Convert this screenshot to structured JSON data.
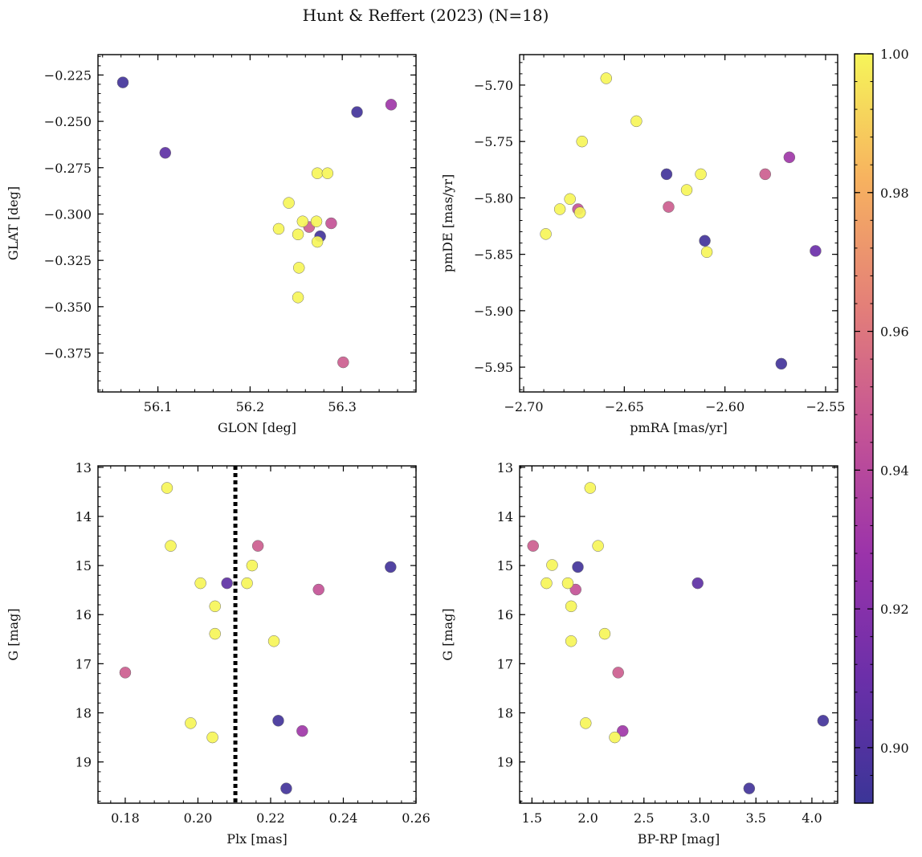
{
  "chart_data": {
    "title": "Hunt & Reffert (2023) (N=18)",
    "type": "scatter",
    "colormap": "plasma",
    "colorbar": {
      "range": [
        0.892,
        1.0
      ],
      "ticks": [
        0.9,
        0.92,
        0.94,
        0.96,
        0.98,
        1.0
      ],
      "tick_labels": [
        "0.90",
        "0.92",
        "0.94",
        "0.96",
        "0.98",
        "1.00"
      ],
      "colors": [
        "#3b3597",
        "#6b2fa9",
        "#9b33aa",
        "#c55495",
        "#e48078",
        "#f7b25f",
        "#f6f559"
      ]
    },
    "panels": [
      {
        "id": "glon-glat",
        "xlabel": "GLON [deg]",
        "ylabel": "GLAT [deg]",
        "xlim": [
          56.035,
          56.38
        ],
        "ylim": [
          -0.396,
          -0.214
        ],
        "yinvert": false,
        "xticks": [
          56.1,
          56.2,
          56.3
        ],
        "xtick_labels": [
          "56.1",
          "56.2",
          "56.3"
        ],
        "yticks": [
          -0.225,
          -0.25,
          -0.275,
          -0.3,
          -0.325,
          -0.35,
          -0.375
        ],
        "ytick_labels": [
          "−0.225",
          "−0.250",
          "−0.275",
          "−0.300",
          "−0.325",
          "−0.350",
          "−0.375"
        ],
        "points": [
          [
            56.062,
            -0.229,
            0.895
          ],
          [
            56.108,
            -0.267,
            0.905
          ],
          [
            56.316,
            -0.245,
            0.895
          ],
          [
            56.353,
            -0.241,
            0.93
          ],
          [
            56.273,
            -0.278,
            1.0
          ],
          [
            56.284,
            -0.278,
            1.0
          ],
          [
            56.242,
            -0.294,
            1.0
          ],
          [
            56.257,
            -0.304,
            1.0
          ],
          [
            56.272,
            -0.304,
            1.0
          ],
          [
            56.264,
            -0.307,
            0.95
          ],
          [
            56.288,
            -0.305,
            0.945
          ],
          [
            56.231,
            -0.308,
            1.0
          ],
          [
            56.252,
            -0.311,
            1.0
          ],
          [
            56.276,
            -0.312,
            0.895
          ],
          [
            56.273,
            -0.315,
            1.0
          ],
          [
            56.253,
            -0.329,
            1.0
          ],
          [
            56.252,
            -0.345,
            1.0
          ],
          [
            56.301,
            -0.38,
            0.95
          ]
        ]
      },
      {
        "id": "pmra-pmde",
        "xlabel": "pmRA [mas/yr]",
        "ylabel": "pmDE [mas/yr]",
        "xlim": [
          -2.702,
          -2.544
        ],
        "ylim": [
          -5.972,
          -5.673
        ],
        "yinvert": false,
        "xticks": [
          -2.7,
          -2.65,
          -2.6,
          -2.55
        ],
        "xtick_labels": [
          "−2.70",
          "−2.65",
          "−2.60",
          "−2.55"
        ],
        "yticks": [
          -5.7,
          -5.75,
          -5.8,
          -5.85,
          -5.9,
          -5.95
        ],
        "ytick_labels": [
          "−5.70",
          "−5.75",
          "−5.80",
          "−5.85",
          "−5.90",
          "−5.95"
        ],
        "points": [
          [
            -2.659,
            -5.694,
            1.0
          ],
          [
            -2.644,
            -5.732,
            1.0
          ],
          [
            -2.671,
            -5.75,
            1.0
          ],
          [
            -2.629,
            -5.779,
            0.895
          ],
          [
            -2.612,
            -5.779,
            1.0
          ],
          [
            -2.58,
            -5.779,
            0.95
          ],
          [
            -2.568,
            -5.764,
            0.93
          ],
          [
            -2.619,
            -5.793,
            1.0
          ],
          [
            -2.677,
            -5.801,
            1.0
          ],
          [
            -2.682,
            -5.81,
            1.0
          ],
          [
            -2.673,
            -5.81,
            0.945
          ],
          [
            -2.672,
            -5.813,
            1.0
          ],
          [
            -2.628,
            -5.808,
            0.95
          ],
          [
            -2.689,
            -5.832,
            1.0
          ],
          [
            -2.61,
            -5.838,
            0.895
          ],
          [
            -2.609,
            -5.848,
            1.0
          ],
          [
            -2.555,
            -5.847,
            0.91
          ],
          [
            -2.572,
            -5.947,
            0.895
          ]
        ]
      },
      {
        "id": "plx-g",
        "xlabel": "Plx [mas]",
        "ylabel": "G [mag]",
        "xlim": [
          0.1725,
          0.26
        ],
        "ylim": [
          12.97,
          19.84
        ],
        "yinvert": true,
        "xticks": [
          0.18,
          0.2,
          0.22,
          0.24,
          0.26
        ],
        "xtick_labels": [
          "0.18",
          "0.20",
          "0.22",
          "0.24",
          "0.26"
        ],
        "yticks": [
          13,
          14,
          15,
          16,
          17,
          18,
          19
        ],
        "ytick_labels": [
          "13",
          "14",
          "15",
          "16",
          "17",
          "18",
          "19"
        ],
        "vline": {
          "x": 0.2103,
          "style": "dotted"
        },
        "points": [
          [
            0.1915,
            13.42,
            1.0
          ],
          [
            0.1925,
            14.6,
            1.0
          ],
          [
            0.2165,
            14.6,
            0.95
          ],
          [
            0.253,
            15.03,
            0.895
          ],
          [
            0.2149,
            15.0,
            1.0
          ],
          [
            0.2007,
            15.36,
            1.0
          ],
          [
            0.208,
            15.36,
            0.905
          ],
          [
            0.2135,
            15.36,
            1.0
          ],
          [
            0.2332,
            15.49,
            0.945
          ],
          [
            0.2047,
            15.83,
            1.0
          ],
          [
            0.2047,
            16.39,
            1.0
          ],
          [
            0.2209,
            16.54,
            1.0
          ],
          [
            0.18,
            17.18,
            0.95
          ],
          [
            0.198,
            18.21,
            1.0
          ],
          [
            0.2221,
            18.16,
            0.895
          ],
          [
            0.2287,
            18.37,
            0.93
          ],
          [
            0.204,
            18.5,
            1.0
          ],
          [
            0.2243,
            19.54,
            0.895
          ]
        ]
      },
      {
        "id": "bprp-g",
        "xlabel": "BP-RP [mag]",
        "ylabel": "G [mag]",
        "xlim": [
          1.39,
          4.23
        ],
        "ylim": [
          12.97,
          19.84
        ],
        "yinvert": true,
        "xticks": [
          1.5,
          2.0,
          2.5,
          3.0,
          3.5,
          4.0
        ],
        "xtick_labels": [
          "1.5",
          "2.0",
          "2.5",
          "3.0",
          "3.5",
          "4.0"
        ],
        "yticks": [
          13,
          14,
          15,
          16,
          17,
          18,
          19
        ],
        "ytick_labels": [
          "13",
          "14",
          "15",
          "16",
          "17",
          "18",
          "19"
        ],
        "points": [
          [
            2.02,
            13.42,
            1.0
          ],
          [
            1.51,
            14.6,
            0.95
          ],
          [
            2.09,
            14.6,
            1.0
          ],
          [
            1.68,
            14.99,
            1.0
          ],
          [
            1.91,
            15.03,
            0.895
          ],
          [
            1.63,
            15.36,
            1.0
          ],
          [
            1.82,
            15.36,
            1.0
          ],
          [
            1.89,
            15.49,
            0.945
          ],
          [
            2.98,
            15.36,
            0.905
          ],
          [
            1.85,
            15.83,
            1.0
          ],
          [
            2.15,
            16.39,
            1.0
          ],
          [
            1.85,
            16.54,
            1.0
          ],
          [
            2.27,
            17.18,
            0.95
          ],
          [
            1.98,
            18.21,
            1.0
          ],
          [
            4.1,
            18.16,
            0.895
          ],
          [
            2.31,
            18.37,
            0.93
          ],
          [
            2.24,
            18.5,
            1.0
          ],
          [
            3.44,
            19.54,
            0.895
          ]
        ]
      }
    ]
  }
}
